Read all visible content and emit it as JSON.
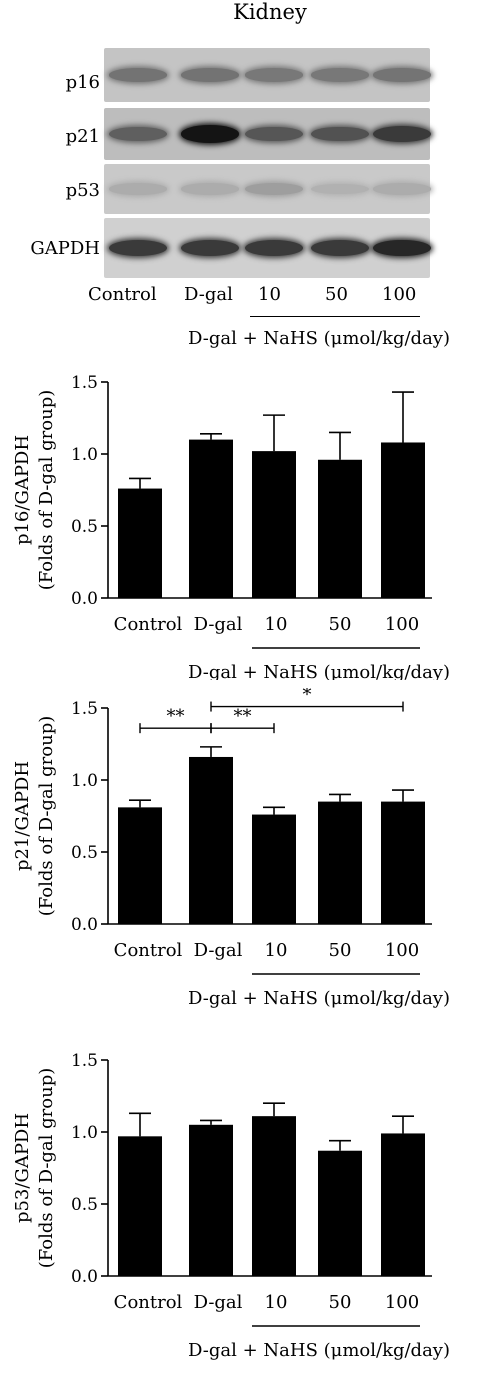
{
  "blot": {
    "title": "Kidney",
    "rows": [
      {
        "label": "p16",
        "intensity": [
          0.45,
          0.45,
          0.42,
          0.42,
          0.44
        ]
      },
      {
        "label": "p21",
        "intensity": [
          0.55,
          0.95,
          0.6,
          0.62,
          0.75
        ]
      },
      {
        "label": "p53",
        "intensity": [
          0.15,
          0.15,
          0.22,
          0.12,
          0.15
        ]
      },
      {
        "label": "GAPDH",
        "intensity": [
          0.75,
          0.75,
          0.75,
          0.75,
          0.85
        ]
      }
    ],
    "lanes": [
      "Control",
      "D-gal",
      "10",
      "50",
      "100"
    ],
    "treatment_label": "D-gal + NaHS (μmol/kg/day)"
  },
  "chart_data": [
    {
      "type": "bar",
      "categories": [
        "Control",
        "D-gal",
        "10",
        "50",
        "100"
      ],
      "values": [
        0.76,
        1.1,
        1.02,
        0.96,
        1.08
      ],
      "errors": [
        0.07,
        0.04,
        0.25,
        0.19,
        0.35
      ],
      "ylabel": "p16/GAPDH",
      "ylabel2": "(Folds of D-gal group)",
      "ylim": [
        0,
        1.5
      ],
      "yticks": [
        "0.0",
        "0.5",
        "1.0",
        "1.5"
      ],
      "treatment_label": "D-gal + NaHS (μmol/kg/day)",
      "significance": []
    },
    {
      "type": "bar",
      "categories": [
        "Control",
        "D-gal",
        "10",
        "50",
        "100"
      ],
      "values": [
        0.81,
        1.16,
        0.76,
        0.85,
        0.85
      ],
      "errors": [
        0.05,
        0.07,
        0.05,
        0.05,
        0.08
      ],
      "ylabel": "p21/GAPDH",
      "ylabel2": "(Folds of D-gal group)",
      "ylim": [
        0,
        1.5
      ],
      "yticks": [
        "0.0",
        "0.5",
        "1.0",
        "1.5"
      ],
      "treatment_label": "D-gal + NaHS (μmol/kg/day)",
      "significance": [
        {
          "from": 0,
          "to": 1,
          "label": "**",
          "y": 1.36
        },
        {
          "from": 1,
          "to": 2,
          "label": "**",
          "y": 1.36
        },
        {
          "from": 1,
          "to": 4,
          "label": "*",
          "y": 1.51
        }
      ]
    },
    {
      "type": "bar",
      "categories": [
        "Control",
        "D-gal",
        "10",
        "50",
        "100"
      ],
      "values": [
        0.97,
        1.05,
        1.11,
        0.87,
        0.99
      ],
      "errors": [
        0.16,
        0.03,
        0.09,
        0.07,
        0.12
      ],
      "ylabel": "p53/GAPDH",
      "ylabel2": "(Folds of D-gal group)",
      "ylim": [
        0,
        1.5
      ],
      "yticks": [
        "0.0",
        "0.5",
        "1.0",
        "1.5"
      ],
      "treatment_label": "D-gal + NaHS (μmol/kg/day)",
      "significance": []
    }
  ]
}
